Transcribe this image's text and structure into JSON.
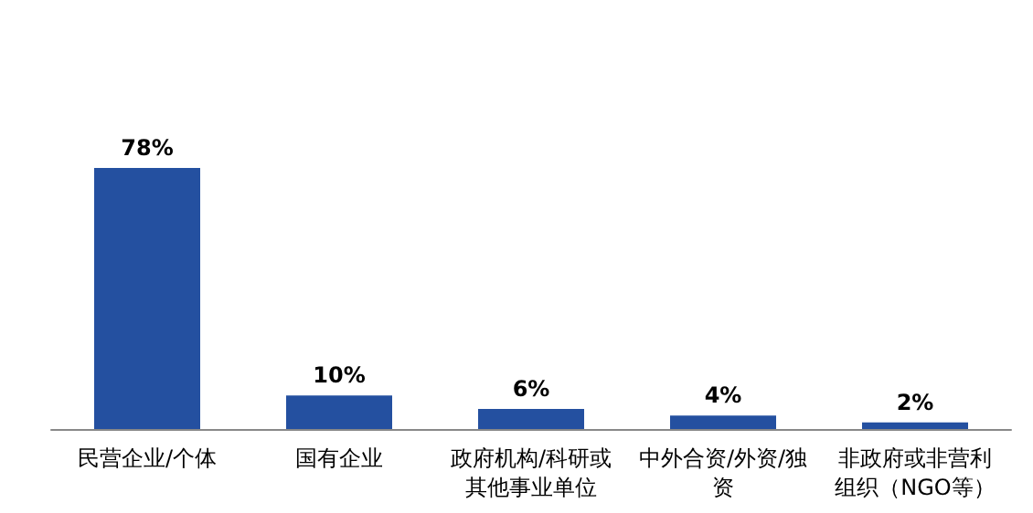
{
  "chart_data": {
    "type": "bar",
    "categories": [
      "民营企业/个体",
      "国有企业",
      "政府机构/科研或其他事业单位",
      "中外合资/外资/独资",
      "非政府或非营利组织（NGO等）"
    ],
    "values": [
      78,
      10,
      6,
      4,
      2
    ],
    "value_labels": [
      "78%",
      "10%",
      "6%",
      "4%",
      "2%"
    ],
    "color": "#2450a0"
  }
}
